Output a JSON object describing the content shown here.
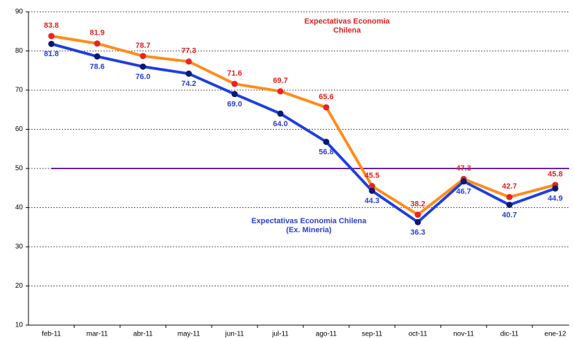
{
  "chart_data": {
    "type": "line",
    "categories": [
      "feb-11",
      "mar-11",
      "abr-11",
      "may-11",
      "jun-11",
      "jul-11",
      "ago-11",
      "sep-11",
      "oct-11",
      "nov-11",
      "dic-11",
      "ene-12"
    ],
    "series": [
      {
        "name": "Expectativas Economia Chilena",
        "color": "#ff8c1a",
        "marker_color": "#e8261f",
        "label_color": "#e02020",
        "values": [
          83.8,
          81.9,
          78.7,
          77.3,
          71.6,
          69.7,
          65.6,
          45.5,
          38.2,
          47.3,
          42.7,
          45.8
        ],
        "value_labels": [
          "83.8",
          "81.9",
          "78.7",
          "77.3",
          "71.6",
          "69.7",
          "65.6",
          "45.5",
          "38.2",
          "47.3",
          "42.7",
          "45.8"
        ]
      },
      {
        "name": "Expectativas Economia Chilena (Ex. Mineria)",
        "color": "#1f3fe0",
        "marker_color": "#0a1a6e",
        "label_color": "#2a3fd0",
        "values": [
          81.8,
          78.6,
          76.0,
          74.2,
          69.0,
          64.0,
          56.8,
          44.3,
          36.3,
          46.7,
          40.7,
          44.9
        ],
        "value_labels": [
          "81.8",
          "78.6",
          "76.0",
          "74.2",
          "69.0",
          "64.0",
          "56.8",
          "44.3",
          "36.3",
          "46.7",
          "40.7",
          "44.9"
        ]
      }
    ],
    "reference_line": {
      "value": 50,
      "color": "#6a1fa8"
    },
    "ylim": [
      10,
      90
    ],
    "yticks": [
      10,
      20,
      30,
      40,
      50,
      60,
      70,
      80,
      90
    ],
    "grid": true
  }
}
